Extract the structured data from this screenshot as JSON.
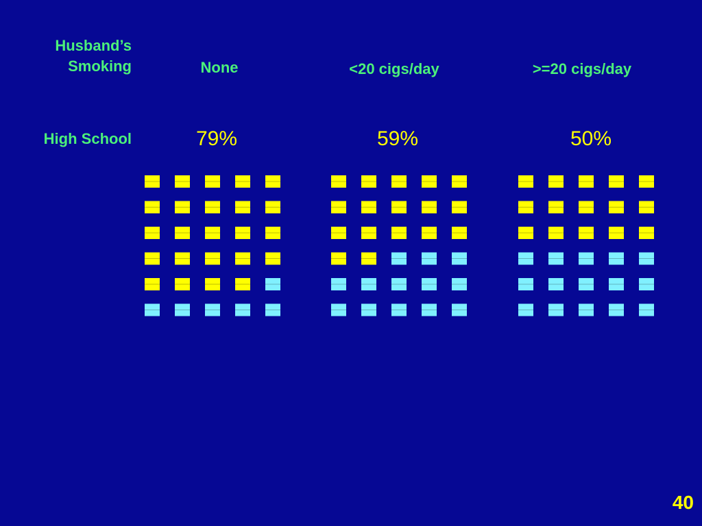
{
  "header": {
    "row_title_line1": "Husband’s",
    "row_title_line2": "Smoking",
    "row_label": "High School"
  },
  "page_number": "40",
  "colors": {
    "background": "#060894",
    "label_green": "#4cf07a",
    "filled_yellow": "#ffff00",
    "empty_cyan": "#80f0ff"
  },
  "chart_data": {
    "type": "table",
    "row_label": "High School",
    "categories": [
      "None",
      "<20 cigs/day",
      ">=20 cigs/day"
    ],
    "values": [
      79,
      59,
      50
    ],
    "value_labels": [
      "79%",
      "59%",
      "50%"
    ],
    "grid": {
      "rows": 6,
      "cols": 5,
      "highlighted_counts": [
        24,
        17,
        15
      ]
    }
  }
}
